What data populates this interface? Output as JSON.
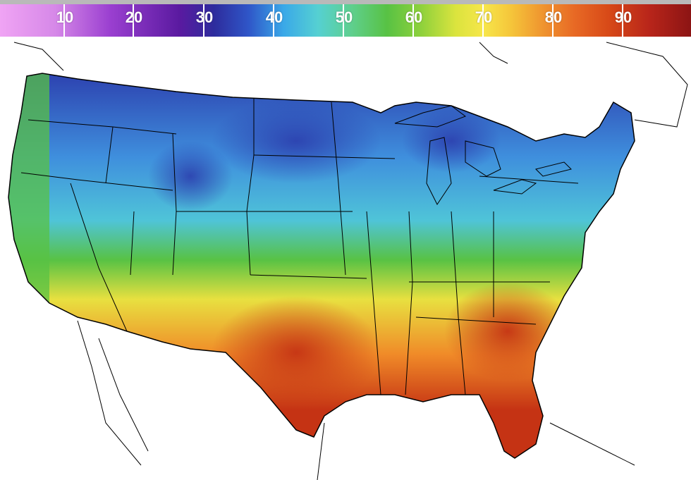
{
  "legend": {
    "ticks": [
      "10",
      "20",
      "30",
      "40",
      "50",
      "60",
      "70",
      "80",
      "90"
    ]
  },
  "colors": {
    "very_cold": "#7b2fb5",
    "cold": "#2c3fae",
    "cool": "#3f8fdd",
    "mild": "#4fc4d8",
    "moderate": "#58c244",
    "warm": "#e8e040",
    "hot": "#f08a28",
    "very_hot": "#c53314"
  }
}
